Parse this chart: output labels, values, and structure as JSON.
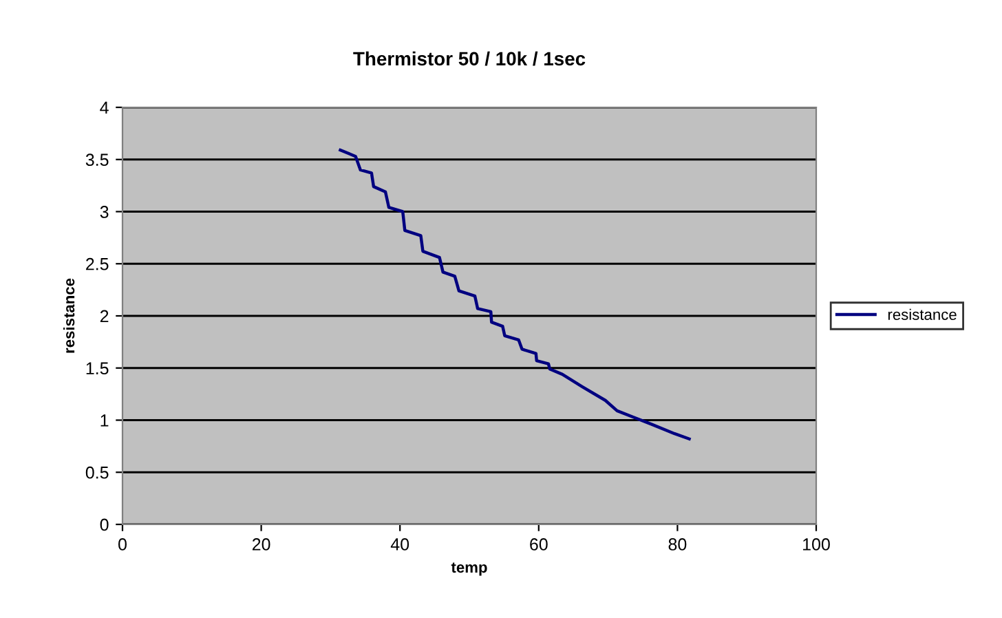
{
  "chart_data": {
    "type": "line",
    "title": "Thermistor 50 / 10k / 1sec",
    "xlabel": "temp",
    "ylabel": "resistance",
    "series": [
      {
        "name": "resistance",
        "color": "#000080",
        "x": [
          31.4,
          33.6,
          34.3,
          35.9,
          36.2,
          37.9,
          38.4,
          40.4,
          40.7,
          43.0,
          43.3,
          45.7,
          46.2,
          47.9,
          48.5,
          50.8,
          51.2,
          53.1,
          53.2,
          54.8,
          55.1,
          57.1,
          57.6,
          59.6,
          59.7,
          61.4,
          61.6,
          63.4,
          66.3,
          69.6,
          71.3,
          73.6,
          76.3,
          79.6,
          81.7
        ],
        "values": [
          3.59,
          3.53,
          3.4,
          3.37,
          3.24,
          3.19,
          3.04,
          3.0,
          2.82,
          2.77,
          2.62,
          2.56,
          2.42,
          2.38,
          2.24,
          2.19,
          2.07,
          2.04,
          1.94,
          1.9,
          1.81,
          1.77,
          1.68,
          1.64,
          1.57,
          1.54,
          1.49,
          1.44,
          1.32,
          1.19,
          1.09,
          1.03,
          0.96,
          0.87,
          0.82
        ]
      }
    ],
    "xlim": [
      0,
      100
    ],
    "xticks": [
      0,
      20,
      40,
      60,
      80,
      100
    ],
    "ylim": [
      0,
      4
    ],
    "yticks": [
      0,
      0.5,
      1,
      1.5,
      2,
      2.5,
      3,
      3.5,
      4
    ],
    "grid": "y",
    "legend": "right",
    "line_style": "solid",
    "marker": "none"
  }
}
